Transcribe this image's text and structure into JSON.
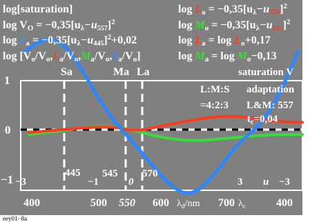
{
  "footer_code": "eey01−8a",
  "header": {
    "row1_left": "log[saturation]",
    "row1_right": {
      "log": "log ",
      "sub": "o",
      "eq": " = −0,35[u",
      "lam": "λ",
      "dash": "−u",
      "u_sub": "570",
      "close": "]",
      "sup": "2"
    },
    "row2_left": {
      "base": "log V",
      "sub": "O",
      "eq": " = −0,35[u",
      "lam": "λ",
      "dash": "−u",
      "u_sub": "557",
      "close": "]",
      "sup": "2"
    },
    "row2_right": {
      "log": "log ",
      "sub": "o",
      "eq": " = −0,35[u",
      "lam": "λ",
      "dash": "−u",
      "u_sub": "545",
      "close": "]",
      "sup": "2"
    },
    "row3_left": {
      "log": "log ",
      "sub": "a",
      "eq": " = −0,35[u",
      "lam": "λ",
      "dash": "−u",
      "u_sub": "445",
      "close": "]",
      "sup": "2",
      "tail": "+0,02"
    },
    "row3_right": {
      "log": "log ",
      "L": "L",
      "sub_a": "a",
      "eq": " = log ",
      "L2": "L",
      "sub_o": "o",
      "tail": "+0,17"
    },
    "row4_left": {
      "lead": "log [V",
      "s1": "o",
      "p1": "/V",
      "s2": "o",
      "p2": ",",
      "L": "L",
      "s3": "a",
      "p3": "/V",
      "s4": "o",
      "p4": ",",
      "M": "M",
      "s5": "a",
      "p5": "/V",
      "s6": "o",
      "p6": ",",
      "S": "S",
      "s7": "a",
      "p7": "/V",
      "s8": "o",
      "p8": "]"
    },
    "row4_right": {
      "log": "log ",
      "M": "M",
      "sub_a": "a",
      "eq": " = log ",
      "M2": "M",
      "sub_o": "o",
      "tail": "−0,13"
    }
  },
  "annotations": {
    "sa": "Sa",
    "ma": "Ma",
    "la": "La",
    "saturation": "saturation V",
    "lms": "L:M:S",
    "adaptation": "adaptation",
    "ratio": "=4:2:3",
    "lm": "L&M: 557",
    "t": "t",
    "t_sub": "c",
    "t_val": "=0,04",
    "n445": "445",
    "n545": "545",
    "n570": "570",
    "m3": "−3",
    "m1": "−1",
    "zero": "0",
    "p3": "3",
    "u": "u",
    "m3b": "−3"
  },
  "x_axis": {
    "ticks": [
      "400",
      "500",
      "550",
      "600",
      "700",
      "400"
    ],
    "unit_d": "λ",
    "unit_d_sub": "d",
    "unit_d_tail": "/nm",
    "unit_c": "λ",
    "unit_c_sub": "c"
  },
  "y_axis": {
    "ticks": [
      "1",
      "0",
      "−1"
    ]
  },
  "colors": {
    "background": "#808080",
    "red": "#ff3b1f",
    "green": "#33e033",
    "blue": "#2f87ff"
  },
  "chart_data": {
    "type": "line",
    "title": "log[saturation]",
    "xlabel": "λd/nm",
    "ylabel": "",
    "x_range": [
      400,
      740
    ],
    "ylim": [
      -1.25,
      1.75
    ],
    "x_ticks": [
      400,
      500,
      550,
      600,
      700
    ],
    "y_ticks": [
      -1,
      0,
      1
    ],
    "series": [
      {
        "color": "red",
        "x": [
          410,
          430,
          450,
          470,
          490,
          510,
          520,
          530,
          545,
          560,
          580,
          600,
          620,
          640,
          660,
          680,
          700,
          720,
          740
        ],
        "y": [
          -0.06,
          -0.03,
          0.0,
          0.03,
          0.05,
          0.05,
          0.03,
          0.0,
          -0.01,
          0.04,
          0.11,
          0.17,
          0.23,
          0.27,
          0.27,
          0.24,
          0.19,
          0.16,
          0.15
        ]
      },
      {
        "color": "green",
        "x": [
          410,
          430,
          450,
          470,
          490,
          510,
          530,
          545,
          560,
          580,
          600,
          620,
          640,
          660,
          680,
          700,
          720,
          740
        ],
        "y": [
          -0.1,
          -0.06,
          -0.02,
          0.03,
          0.06,
          0.06,
          0.01,
          -0.05,
          -0.12,
          -0.18,
          -0.22,
          -0.22,
          -0.19,
          -0.16,
          -0.13,
          -0.11,
          -0.1,
          -0.1
        ]
      },
      {
        "color": "blue",
        "x": [
          405,
          415,
          425,
          435,
          445,
          455,
          465,
          475,
          485,
          495,
          505,
          515,
          525,
          535,
          545,
          555,
          565,
          575,
          585,
          595,
          605,
          615,
          625,
          635,
          645,
          655,
          665,
          675,
          685,
          695,
          705,
          715,
          725,
          735
        ],
        "y": [
          1.6,
          1.72,
          1.82,
          1.85,
          1.8,
          1.68,
          1.45,
          1.2,
          0.9,
          0.62,
          0.36,
          0.14,
          -0.06,
          -0.25,
          -0.45,
          -0.65,
          -0.85,
          -1.03,
          -1.18,
          -1.28,
          -1.3,
          -1.22,
          -1.07,
          -0.88,
          -0.66,
          -0.45,
          -0.26,
          -0.1,
          0.05,
          0.25,
          0.52,
          0.85,
          1.2,
          1.6
        ]
      }
    ]
  }
}
